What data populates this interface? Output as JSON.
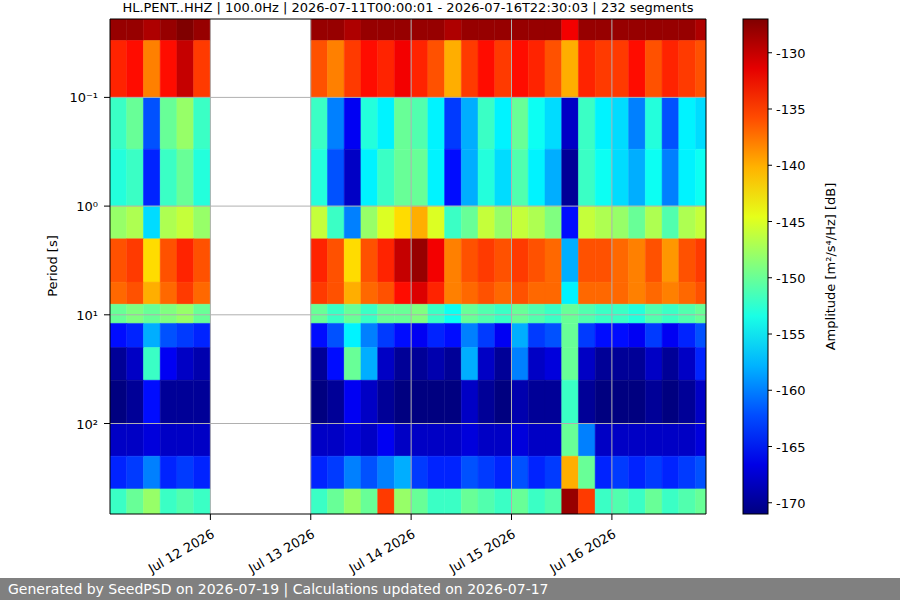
{
  "chart_data": {
    "type": "heatmap",
    "title": "HL.PENT..HHZ | 100.0Hz | 2026-07-11T00:00:01 - 2026-07-16T22:30:03 | 232 segments",
    "y_label": "Period [s]",
    "footer": "Generated by SeedPSD on 2026-07-19 | Calculations updated on 2026-07-17",
    "log": "y",
    "grid": true,
    "xlim": [
      "2026-07-11T00:00:01",
      "2026-07-16T22:30:03"
    ],
    "xticks": [
      {
        "value": "2026-07-12T00:00:00",
        "label": "Jul 12 2026"
      },
      {
        "value": "2026-07-13T00:00:00",
        "label": "Jul 13 2026"
      },
      {
        "value": "2026-07-14T00:00:00",
        "label": "Jul 14 2026"
      },
      {
        "value": "2026-07-15T00:00:00",
        "label": "Jul 15 2026"
      },
      {
        "value": "2026-07-16T00:00:00",
        "label": "Jul 16 2026"
      }
    ],
    "ylim": [
      0.019,
      680
    ],
    "yticks": [
      {
        "value": 0.1,
        "label": "10⁻¹"
      },
      {
        "value": 1,
        "label": "10⁰"
      },
      {
        "value": 10,
        "label": "10¹"
      },
      {
        "value": 100,
        "label": "10²"
      }
    ],
    "x_edges": [
      "2026-07-11T00:00:01",
      "2026-07-11T04:00:00",
      "2026-07-11T08:00:00",
      "2026-07-11T12:00:00",
      "2026-07-11T16:00:00",
      "2026-07-11T20:00:00",
      "2026-07-12T00:00:00",
      "2026-07-12T04:00:00",
      "2026-07-12T08:00:00",
      "2026-07-12T12:00:00",
      "2026-07-12T16:00:00",
      "2026-07-12T20:00:00",
      "2026-07-13T00:00:00",
      "2026-07-13T04:00:00",
      "2026-07-13T08:00:00",
      "2026-07-13T12:00:00",
      "2026-07-13T16:00:00",
      "2026-07-13T20:00:00",
      "2026-07-14T00:00:00",
      "2026-07-14T04:00:00",
      "2026-07-14T08:00:00",
      "2026-07-14T12:00:00",
      "2026-07-14T16:00:00",
      "2026-07-14T20:00:00",
      "2026-07-15T00:00:00",
      "2026-07-15T04:00:00",
      "2026-07-15T08:00:00",
      "2026-07-15T12:00:00",
      "2026-07-15T16:00:00",
      "2026-07-15T20:00:00",
      "2026-07-16T00:00:00",
      "2026-07-16T04:00:00",
      "2026-07-16T08:00:00",
      "2026-07-16T12:00:00",
      "2026-07-16T16:00:00",
      "2026-07-16T20:00:00",
      "2026-07-16T22:30:03"
    ],
    "y_edges": [
      0.019,
      0.03,
      0.1,
      0.3,
      1,
      2,
      5,
      8,
      12,
      20,
      40,
      100,
      200,
      400,
      680
    ],
    "cells": [
      [
        -128,
        -128,
        -129,
        -128,
        -127,
        -128,
        null,
        null,
        null,
        null,
        null,
        null,
        -128,
        -128,
        -129,
        -128,
        -128,
        -128,
        -128,
        -128,
        -129,
        -128,
        -128,
        -128,
        -128,
        -128,
        -128,
        -132,
        -128,
        -128,
        -128,
        -128,
        -128,
        -128,
        -128,
        -129
      ],
      [
        -134,
        -133,
        -138,
        -133,
        -130,
        -135,
        null,
        null,
        null,
        null,
        null,
        null,
        -136,
        -138,
        -135,
        -133,
        -134,
        -132,
        -134,
        -136,
        -140,
        -135,
        -133,
        -135,
        -133,
        -134,
        -136,
        -140,
        -134,
        -135,
        -135,
        -133,
        -136,
        -134,
        -135,
        -136
      ],
      [
        -152,
        -150,
        -162,
        -150,
        -148,
        -152,
        null,
        null,
        null,
        null,
        null,
        null,
        -152,
        -160,
        -166,
        -153,
        -155,
        -150,
        -151,
        -155,
        -163,
        -158,
        -152,
        -155,
        -150,
        -154,
        -156,
        -168,
        -152,
        -155,
        -156,
        -160,
        -153,
        -162,
        -155,
        -156
      ],
      [
        -153,
        -152,
        -164,
        -152,
        -150,
        -153,
        null,
        null,
        null,
        null,
        null,
        null,
        -153,
        -162,
        -168,
        -155,
        -152,
        -150,
        -150,
        -155,
        -165,
        -158,
        -153,
        -156,
        -151,
        -155,
        -158,
        -170,
        -152,
        -154,
        -156,
        -158,
        -154,
        -160,
        -155,
        -154
      ],
      [
        -148,
        -147,
        -156,
        -147,
        -146,
        -148,
        null,
        null,
        null,
        null,
        null,
        null,
        -146,
        -152,
        -160,
        -148,
        -145,
        -142,
        -140,
        -145,
        -152,
        -150,
        -146,
        -148,
        -146,
        -147,
        -149,
        -165,
        -146,
        -147,
        -148,
        -150,
        -147,
        -151,
        -147,
        -146
      ],
      [
        -136,
        -135,
        -142,
        -136,
        -134,
        -136,
        null,
        null,
        null,
        null,
        null,
        null,
        -134,
        -136,
        -142,
        -136,
        -134,
        -130,
        -128,
        -132,
        -138,
        -136,
        -135,
        -136,
        -135,
        -136,
        -137,
        -158,
        -136,
        -136,
        -137,
        -138,
        -136,
        -139,
        -136,
        -135
      ],
      [
        -137,
        -136,
        -140,
        -137,
        -135,
        -137,
        null,
        null,
        null,
        null,
        null,
        null,
        -135,
        -136,
        -140,
        -137,
        -136,
        -133,
        -131,
        -134,
        -138,
        -137,
        -136,
        -137,
        -136,
        -137,
        -137,
        -155,
        -137,
        -137,
        -137,
        -138,
        -137,
        -138,
        -137,
        -136
      ],
      [
        -150,
        -149,
        -150,
        -149,
        -148,
        -150,
        null,
        null,
        null,
        null,
        null,
        null,
        -150,
        -152,
        -150,
        -152,
        -150,
        -150,
        -149,
        -152,
        -154,
        -150,
        -151,
        -152,
        -150,
        -151,
        -152,
        -150,
        -151,
        -152,
        -152,
        -153,
        -151,
        -152,
        -151,
        -150
      ],
      [
        -165,
        -164,
        -158,
        -162,
        -163,
        -164,
        null,
        null,
        null,
        null,
        null,
        null,
        -165,
        -162,
        -155,
        -160,
        -163,
        -165,
        -166,
        -164,
        -165,
        -160,
        -163,
        -166,
        -158,
        -163,
        -162,
        -150,
        -163,
        -165,
        -165,
        -166,
        -163,
        -166,
        -164,
        -162
      ],
      [
        -170,
        -168,
        -152,
        -166,
        -168,
        -169,
        null,
        null,
        null,
        null,
        null,
        null,
        -170,
        -165,
        -150,
        -158,
        -168,
        -170,
        -170,
        -169,
        -170,
        -158,
        -168,
        -170,
        -160,
        -168,
        -167,
        -150,
        -168,
        -170,
        -170,
        -170,
        -168,
        -170,
        -168,
        -164
      ],
      [
        -171,
        -170,
        -165,
        -170,
        -170,
        -170,
        null,
        null,
        null,
        null,
        null,
        null,
        -171,
        -170,
        -166,
        -168,
        -170,
        -171,
        -171,
        -171,
        -171,
        -168,
        -170,
        -171,
        -169,
        -170,
        -170,
        -152,
        -170,
        -171,
        -171,
        -171,
        -170,
        -171,
        -170,
        -168
      ],
      [
        -168,
        -168,
        -167,
        -168,
        -168,
        -168,
        null,
        null,
        null,
        null,
        null,
        null,
        -168,
        -168,
        -167,
        -168,
        -166,
        -168,
        -168,
        -168,
        -168,
        -167,
        -168,
        -168,
        -167,
        -168,
        -168,
        -150,
        -160,
        -168,
        -168,
        -168,
        -168,
        -168,
        -168,
        -167
      ],
      [
        -164,
        -163,
        -160,
        -164,
        -163,
        -164,
        null,
        null,
        null,
        null,
        null,
        null,
        -164,
        -163,
        -160,
        -162,
        -160,
        -158,
        -163,
        -164,
        -164,
        -162,
        -163,
        -164,
        -162,
        -164,
        -163,
        -140,
        -150,
        -164,
        -163,
        -164,
        -163,
        -164,
        -163,
        -162
      ],
      [
        -152,
        -150,
        -148,
        -152,
        -151,
        -152,
        null,
        null,
        null,
        null,
        null,
        null,
        -152,
        -150,
        -148,
        -150,
        -135,
        -148,
        -150,
        -152,
        -152,
        -150,
        -151,
        -152,
        -150,
        -152,
        -151,
        -128,
        -135,
        -152,
        -151,
        -152,
        -150,
        -152,
        -151,
        -150
      ]
    ],
    "colorbar": {
      "label": "Amplitude [m²/s⁴/Hz] [dB]",
      "range": [
        -171,
        -127
      ],
      "ticks": [
        -130,
        -135,
        -140,
        -145,
        -150,
        -155,
        -160,
        -165,
        -170
      ]
    }
  }
}
